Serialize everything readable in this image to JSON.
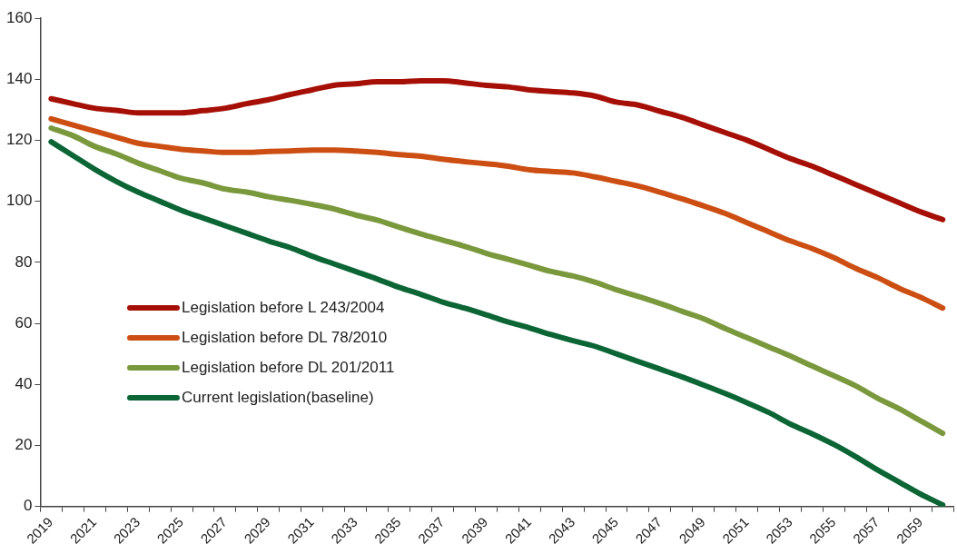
{
  "chart_data": {
    "type": "line",
    "categories": [
      "2019",
      null,
      "2021",
      null,
      "2023",
      null,
      "2025",
      null,
      "2027",
      null,
      "2029",
      null,
      "2031",
      null,
      "2033",
      null,
      "2035",
      null,
      "2037",
      null,
      "2039",
      null,
      "2041",
      null,
      "2043",
      null,
      "2045",
      null,
      "2047",
      null,
      "2049",
      null,
      "2051",
      null,
      "2053",
      null,
      "2055",
      null,
      "2057",
      null,
      "2059",
      null
    ],
    "series": [
      {
        "name": "Legislation before L 243/2004",
        "color": "#a50f06",
        "values": [
          133.6,
          132,
          130.5,
          129.8,
          129,
          129,
          129,
          129.7,
          130.5,
          132,
          133.3,
          135,
          136.5,
          138,
          138.5,
          139.2,
          139.2,
          139.5,
          139.5,
          138.8,
          138,
          137.5,
          136.5,
          136,
          135.5,
          134.5,
          132.5,
          131.5,
          129.5,
          127.5,
          125,
          122.5,
          120,
          117,
          114,
          111.5,
          108.5,
          105.5,
          102.5,
          99.5,
          96.5,
          94
        ]
      },
      {
        "name": "Legislation before DL 78/2010",
        "color": "#cc4e12",
        "values": [
          127,
          125,
          123,
          121,
          119,
          118,
          117,
          116.5,
          116,
          116,
          116.3,
          116.5,
          116.8,
          116.8,
          116.5,
          116,
          115.3,
          114.8,
          113.8,
          113,
          112.3,
          111.5,
          110.3,
          109.8,
          109.3,
          108,
          106.5,
          105,
          103,
          100.8,
          98.5,
          96,
          93,
          90,
          87,
          84.5,
          81.5,
          78,
          75,
          71.5,
          68.5,
          65
        ]
      },
      {
        "name": "Legislation before DL 201/2011",
        "color": "#7a983c",
        "values": [
          124,
          121.5,
          118,
          115.5,
          112.5,
          110,
          107.5,
          106,
          104,
          103,
          101.5,
          100.3,
          99,
          97.5,
          95.5,
          93.8,
          91.5,
          89.3,
          87.3,
          85.3,
          83,
          81,
          79,
          77,
          75.5,
          73.5,
          71,
          68.8,
          66.5,
          64,
          61.5,
          58.3,
          55.3,
          52.3,
          49.3,
          46,
          42.8,
          39.5,
          35.5,
          32,
          28,
          24
        ]
      },
      {
        "name": "Current legislation(baseline)",
        "color": "#0b6535",
        "values": [
          119.5,
          115,
          110.5,
          106.5,
          103,
          100,
          97,
          94.5,
          92,
          89.5,
          87,
          84.8,
          82,
          79.5,
          77,
          74.5,
          71.8,
          69.5,
          67,
          65,
          62.8,
          60.5,
          58.5,
          56.3,
          54.3,
          52.5,
          50,
          47.5,
          45,
          42.5,
          39.8,
          37,
          34,
          30.8,
          27,
          23.8,
          20.3,
          16.3,
          12,
          8,
          4,
          0.5
        ]
      }
    ],
    "ylim": [
      0,
      160
    ],
    "yticks": [
      0,
      20,
      40,
      60,
      80,
      100,
      120,
      140,
      160
    ],
    "legend": "bottom left",
    "grid": false,
    "marker": "none",
    "line_style": "solid"
  }
}
